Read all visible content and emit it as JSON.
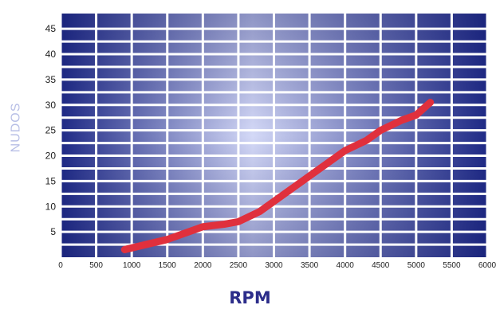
{
  "chart_data": {
    "type": "line",
    "title": "",
    "xlabel": "RPM",
    "ylabel": "NUDOS",
    "xlim": [
      0,
      6000
    ],
    "ylim": [
      0,
      48
    ],
    "xticks": [
      "0",
      "500",
      "1000",
      "1500",
      "2000",
      "2500",
      "3000",
      "3500",
      "4000",
      "4500",
      "5000",
      "5500",
      "6000"
    ],
    "yticks": [
      "5",
      "10",
      "15",
      "20",
      "25",
      "30",
      "35",
      "40",
      "45"
    ],
    "grid": true,
    "series": [
      {
        "x": [
          900,
          1200,
          1500,
          1800,
          2000,
          2300,
          2500,
          2800,
          3000,
          3300,
          3500,
          3800,
          4000,
          4300,
          4500,
          4800,
          5000,
          5200
        ],
        "y": [
          1.5,
          2.5,
          3.5,
          5.0,
          6.0,
          6.5,
          7.0,
          9.0,
          11.0,
          14.0,
          16.0,
          19.0,
          21.0,
          23.0,
          25.0,
          27.0,
          28.0,
          30.5
        ]
      }
    ],
    "colors": {
      "line": "#e0303d",
      "plot_edge": "#1f2a86",
      "plot_center": "#d4d9f7",
      "grid": "#ffffff",
      "tick_text": "#222222"
    }
  }
}
